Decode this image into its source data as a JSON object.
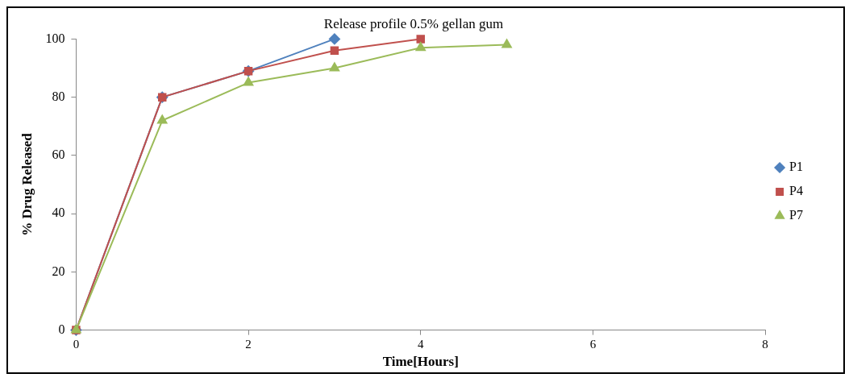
{
  "chart_data": {
    "type": "line",
    "title": "Release profile 0.5% gellan gum",
    "xlabel": "Time[Hours]",
    "ylabel": "% Drug Released",
    "x": [
      0,
      1,
      2,
      3,
      4,
      5
    ],
    "series": [
      {
        "name": "P1",
        "color": "#4f81bd",
        "marker": "diamond",
        "values": [
          0,
          80,
          89,
          100,
          null,
          null
        ]
      },
      {
        "name": "P4",
        "color": "#c0504d",
        "marker": "square",
        "values": [
          0,
          80,
          89,
          96,
          100,
          null
        ]
      },
      {
        "name": "P7",
        "color": "#9bbb59",
        "marker": "triangle",
        "values": [
          0,
          72,
          85,
          90,
          97,
          98
        ]
      }
    ],
    "xlim": [
      0,
      8
    ],
    "xticks": [
      0,
      2,
      4,
      6,
      8
    ],
    "ylim": [
      0,
      100
    ],
    "yticks": [
      0,
      20,
      40,
      60,
      80,
      100
    ],
    "grid": false,
    "legend": "right"
  }
}
